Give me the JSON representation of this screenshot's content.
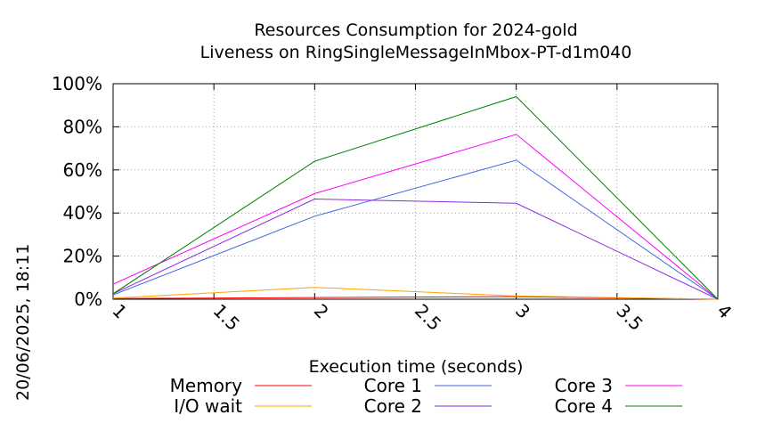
{
  "timestamp": "20/06/2025, 18:11",
  "chart_data": {
    "type": "line",
    "title_lines": [
      "Resources Consumption for 2024-gold",
      "Liveness on RingSingleMessageInMbox-PT-d1m040"
    ],
    "xlabel": "Execution time (seconds)",
    "ylabel": "",
    "xlim": [
      1,
      4
    ],
    "ylim": [
      0,
      100
    ],
    "x_ticks": [
      "1",
      "1.5",
      "2",
      "2.5",
      "3",
      "3.5",
      "4"
    ],
    "x_tick_values": [
      1,
      1.5,
      2,
      2.5,
      3,
      3.5,
      4
    ],
    "y_ticks": [
      "0%",
      "20%",
      "40%",
      "60%",
      "80%",
      "100%"
    ],
    "y_tick_values": [
      0,
      20,
      40,
      60,
      80,
      100
    ],
    "grid": true,
    "legend_placement": "bottom",
    "x": [
      1,
      2,
      3,
      4
    ],
    "series": [
      {
        "name": "Memory",
        "color": "#ff0000",
        "values": [
          0.3,
          0.8,
          1.2,
          0
        ]
      },
      {
        "name": "I/O wait",
        "color": "#ffa500",
        "values": [
          0.5,
          5.5,
          1.5,
          0
        ]
      },
      {
        "name": "Core 1",
        "color": "#4169e1",
        "values": [
          2,
          38.5,
          64.5,
          0
        ]
      },
      {
        "name": "Core 2",
        "color": "#8a2be2",
        "values": [
          2.5,
          46.5,
          44.5,
          0
        ]
      },
      {
        "name": "Core 3",
        "color": "#ff00ff",
        "values": [
          7,
          49,
          76.5,
          0
        ]
      },
      {
        "name": "Core 4",
        "color": "#008000",
        "values": [
          2.5,
          64,
          94,
          0
        ]
      }
    ]
  }
}
